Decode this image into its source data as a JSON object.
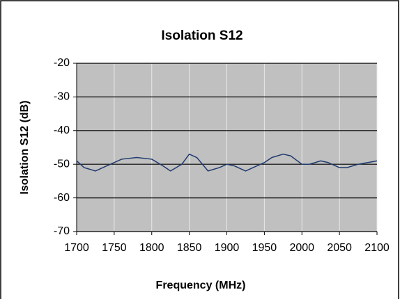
{
  "chart_data": {
    "type": "line",
    "title": "Isolation S12",
    "x_label": "Frequency (MHz)",
    "y_label": "Isolation S12 (dB)",
    "x": [
      1700,
      1710,
      1725,
      1740,
      1760,
      1780,
      1800,
      1815,
      1825,
      1840,
      1850,
      1860,
      1875,
      1890,
      1900,
      1910,
      1925,
      1940,
      1950,
      1960,
      1975,
      1985,
      2000,
      2010,
      2025,
      2035,
      2050,
      2060,
      2075,
      2100
    ],
    "values": [
      -49,
      -51,
      -52,
      -50.5,
      -48.5,
      -48,
      -48.5,
      -50.5,
      -52,
      -50,
      -47,
      -48,
      -52,
      -51,
      -50,
      -50.5,
      -52,
      -50.5,
      -49.5,
      -48,
      -47,
      -47.5,
      -50,
      -50,
      -49,
      -49.5,
      -51,
      -51,
      -50,
      -49
    ],
    "color": "#1f3a6e",
    "xlim": [
      1700,
      2100
    ],
    "xticks": [
      1700,
      1750,
      1800,
      1850,
      1900,
      1950,
      2000,
      2050,
      2100
    ],
    "ylim": [
      -70,
      -20
    ],
    "yticks": [
      -20,
      -30,
      -40,
      -50,
      -60,
      -70
    ],
    "grid": true
  }
}
